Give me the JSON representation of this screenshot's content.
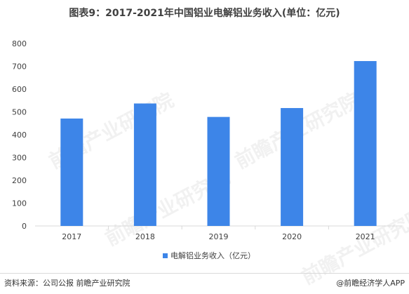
{
  "title": "图表9：2017-2021年中国铝业电解铝业务收入(单位：亿元)",
  "source": "资料来源：公司公报 前瞻产业研究院",
  "brand": "@前瞻经济学人APP",
  "watermark": "前瞻产业研究院",
  "colors": {
    "bar": "#3d85e8",
    "axis": "#d9d9d9",
    "tick_text": "#404040"
  },
  "chart_data": {
    "type": "bar",
    "categories": [
      "2017",
      "2018",
      "2019",
      "2020",
      "2021"
    ],
    "series": [
      {
        "name": "电解铝业务收入（亿元）",
        "values": [
          471,
          537,
          478,
          517,
          723
        ]
      }
    ],
    "ylim": [
      0,
      800
    ],
    "yticks": [
      0,
      100,
      200,
      300,
      400,
      500,
      600,
      700,
      800
    ],
    "grid": false,
    "legend": "bottom"
  }
}
